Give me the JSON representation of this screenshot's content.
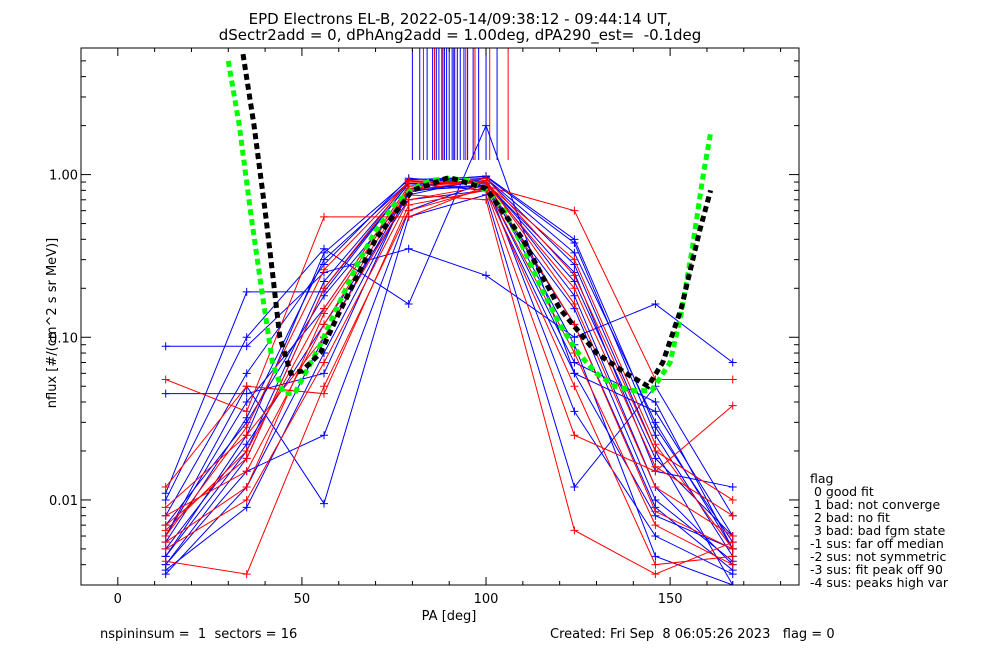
{
  "header": {
    "title": "EPD Electrons EL-B, 2022-05-14/09:38:12 - 09:44:14 UT,",
    "subtitle": "dSectr2add = 0, dPhAng2add = 1.00deg, dPA290_est=  -0.1deg"
  },
  "footer": {
    "left": "nspininsum =  1  sectors = 16",
    "right": "Created: Fri Sep  8 06:05:26 2023   flag = 0"
  },
  "legend": {
    "title": "flag",
    "items": [
      " 0 good fit",
      " 1 bad: not converge",
      " 2 bad: no fit",
      " 3 bad: bad fgm state",
      "-1 sus: far off median",
      "-2 sus: not symmetric",
      "-3 sus: fit peak off 90",
      "-4 sus: peaks high var"
    ]
  },
  "colors": {
    "blue": "#0000ff",
    "red": "#ff0000",
    "green": "#00ff00",
    "black": "#000000"
  },
  "chart_data": {
    "type": "line",
    "xlabel": "PA [deg]",
    "ylabel": "nflux [#/(cm^2 s sr MeV)]",
    "xlim": [
      -10,
      185
    ],
    "ylim": [
      0.003,
      6
    ],
    "yscale": "log",
    "x_ticks": [
      0,
      50,
      100,
      150
    ],
    "y_ticks": [
      {
        "value": 0.01,
        "label": "0.01"
      },
      {
        "value": 0.1,
        "label": "0.10"
      },
      {
        "value": 1,
        "label": "1.00"
      }
    ],
    "pa_bins": [
      13,
      35,
      56,
      79,
      100,
      124,
      146,
      167
    ],
    "series": [
      {
        "color": "blue",
        "values": [
          0.0045,
          0.025,
          0.33,
          0.93,
          0.97,
          0.38,
          0.025,
          0.0045
        ]
      },
      {
        "color": "blue",
        "values": [
          0.0055,
          0.032,
          0.3,
          0.9,
          0.95,
          0.33,
          0.03,
          0.005
        ]
      },
      {
        "color": "blue",
        "values": [
          0.004,
          0.018,
          0.2,
          0.88,
          0.9,
          0.22,
          0.018,
          0.006
        ]
      },
      {
        "color": "blue",
        "values": [
          0.006,
          0.04,
          0.15,
          0.85,
          0.92,
          0.18,
          0.012,
          0.004
        ]
      },
      {
        "color": "blue",
        "values": [
          0.0035,
          0.012,
          0.1,
          0.8,
          0.85,
          0.12,
          0.009,
          0.0037
        ]
      },
      {
        "color": "blue",
        "values": [
          0.01,
          0.1,
          0.35,
          0.16,
          2.0,
          0.06,
          0.008,
          0.005
        ]
      },
      {
        "color": "blue",
        "values": [
          0.045,
          0.045,
          0.06,
          0.82,
          0.86,
          0.07,
          0.04,
          0.005
        ]
      },
      {
        "color": "blue",
        "values": [
          0.088,
          0.088,
          0.25,
          0.35,
          0.24,
          0.1,
          0.16,
          0.07
        ]
      },
      {
        "color": "blue",
        "values": [
          0.007,
          0.03,
          0.18,
          0.75,
          0.95,
          0.28,
          0.02,
          0.003
        ]
      },
      {
        "color": "blue",
        "values": [
          0.005,
          0.022,
          0.12,
          0.7,
          0.8,
          0.15,
          0.01,
          0.0042
        ]
      },
      {
        "color": "blue",
        "values": [
          0.004,
          0.015,
          0.025,
          0.6,
          0.9,
          0.035,
          0.006,
          0.0035
        ]
      },
      {
        "color": "blue",
        "values": [
          0.008,
          0.06,
          0.28,
          0.95,
          0.88,
          0.25,
          0.015,
          0.012
        ]
      },
      {
        "color": "blue",
        "values": [
          0.006,
          0.05,
          0.0095,
          0.55,
          0.75,
          0.012,
          0.05,
          0.008
        ]
      },
      {
        "color": "blue",
        "values": [
          0.011,
          0.19,
          0.19,
          0.88,
          0.8,
          0.06,
          0.035,
          0.006
        ]
      },
      {
        "color": "blue",
        "values": [
          0.0037,
          0.009,
          0.08,
          0.78,
          0.92,
          0.09,
          0.0045,
          0.003
        ]
      },
      {
        "color": "blue",
        "values": [
          0.0045,
          0.02,
          0.22,
          0.9,
          0.98,
          0.4,
          0.028,
          0.0055
        ]
      },
      {
        "color": "red",
        "values": [
          0.006,
          0.028,
          0.26,
          0.9,
          0.88,
          0.3,
          0.022,
          0.005
        ]
      },
      {
        "color": "red",
        "values": [
          0.008,
          0.015,
          0.12,
          0.8,
          0.92,
          0.16,
          0.012,
          0.006
        ]
      },
      {
        "color": "red",
        "values": [
          0.005,
          0.01,
          0.07,
          0.7,
          0.85,
          0.08,
          0.007,
          0.004
        ]
      },
      {
        "color": "red",
        "values": [
          0.055,
          0.035,
          0.55,
          0.55,
          0.85,
          0.6,
          0.055,
          0.055
        ]
      },
      {
        "color": "red",
        "values": [
          0.012,
          0.05,
          0.045,
          0.65,
          0.8,
          0.025,
          0.015,
          0.038
        ]
      },
      {
        "color": "red",
        "values": [
          0.0065,
          0.02,
          0.15,
          0.85,
          0.9,
          0.12,
          0.0085,
          0.005
        ]
      },
      {
        "color": "red",
        "values": [
          0.009,
          0.025,
          0.1,
          0.75,
          0.7,
          0.0065,
          0.0035,
          0.0055
        ]
      },
      {
        "color": "red",
        "values": [
          0.0042,
          0.0035,
          0.05,
          0.6,
          0.82,
          0.05,
          0.004,
          0.0045
        ]
      },
      {
        "color": "red",
        "values": [
          0.007,
          0.018,
          0.2,
          0.92,
          0.88,
          0.2,
          0.016,
          0.008
        ]
      },
      {
        "color": "red",
        "values": [
          0.0055,
          0.012,
          0.14,
          0.82,
          0.95,
          0.24,
          0.02,
          0.01
        ]
      }
    ],
    "fits": [
      {
        "color": "green",
        "style": "dashed",
        "points": [
          [
            30,
            5.0
          ],
          [
            33,
            2.0
          ],
          [
            36,
            0.6
          ],
          [
            39,
            0.2
          ],
          [
            42,
            0.07
          ],
          [
            45,
            0.045
          ],
          [
            48,
            0.045
          ],
          [
            55,
            0.09
          ],
          [
            60,
            0.16
          ],
          [
            65,
            0.28
          ],
          [
            70,
            0.45
          ],
          [
            75,
            0.65
          ],
          [
            80,
            0.82
          ],
          [
            85,
            0.92
          ],
          [
            90,
            0.95
          ],
          [
            95,
            0.92
          ],
          [
            100,
            0.8
          ],
          [
            105,
            0.6
          ],
          [
            110,
            0.36
          ],
          [
            115,
            0.2
          ],
          [
            120,
            0.12
          ],
          [
            125,
            0.08
          ],
          [
            130,
            0.06
          ],
          [
            135,
            0.05
          ],
          [
            140,
            0.047
          ],
          [
            145,
            0.047
          ],
          [
            150,
            0.07
          ],
          [
            153,
            0.14
          ],
          [
            156,
            0.35
          ],
          [
            159,
            1.0
          ],
          [
            161,
            1.8
          ]
        ]
      },
      {
        "color": "black",
        "style": "dashed",
        "points": [
          [
            34,
            5.5
          ],
          [
            37,
            2.0
          ],
          [
            40,
            0.6
          ],
          [
            42,
            0.25
          ],
          [
            44,
            0.1
          ],
          [
            47,
            0.06
          ],
          [
            50,
            0.062
          ],
          [
            55,
            0.08
          ],
          [
            60,
            0.14
          ],
          [
            70,
            0.4
          ],
          [
            80,
            0.8
          ],
          [
            90,
            0.96
          ],
          [
            100,
            0.82
          ],
          [
            110,
            0.4
          ],
          [
            120,
            0.15
          ],
          [
            130,
            0.08
          ],
          [
            138,
            0.06
          ],
          [
            144,
            0.05
          ],
          [
            148,
            0.07
          ],
          [
            153,
            0.15
          ],
          [
            158,
            0.45
          ],
          [
            161,
            0.8
          ]
        ]
      }
    ],
    "top_lines": {
      "blue_x": [
        80,
        82,
        84,
        85.5,
        86.5,
        87.2,
        88,
        88.7,
        89.3,
        90,
        90.8,
        91.5,
        92.2,
        93,
        94,
        95,
        96.5,
        98,
        100,
        103
      ],
      "red_x": [
        83,
        86,
        88.3,
        91.2,
        94.5,
        97,
        101,
        106
      ]
    }
  }
}
